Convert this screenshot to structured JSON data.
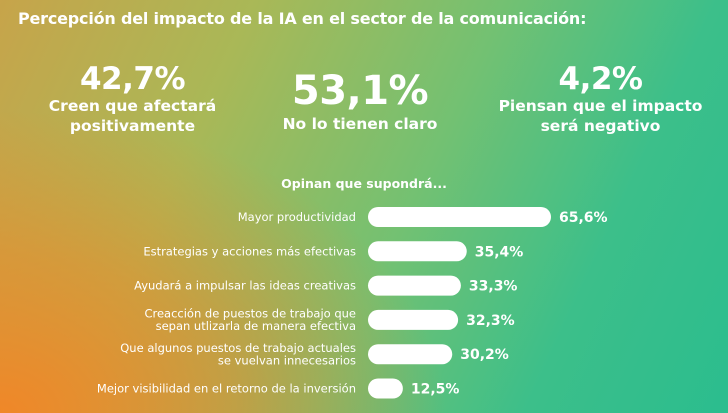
{
  "title": "Percepción del impacto de la IA en el sector de la comunicación:",
  "stats": [
    {
      "value": "42,7%",
      "caption_lines": [
        "Creen que afectará",
        "positivamente"
      ]
    },
    {
      "value": "53,1%",
      "caption_lines": [
        "No lo tienen claro"
      ]
    },
    {
      "value": "4,2%",
      "caption_lines": [
        "Piensan que el impacto",
        "será negativo"
      ]
    }
  ],
  "chart_data": {
    "type": "bar",
    "orientation": "horizontal",
    "title": "Opinan que supondrá...",
    "categories": [
      [
        "Mayor productividad"
      ],
      [
        "Estrategias y acciones más efectivas"
      ],
      [
        "Ayudará a impulsar las ideas creativas"
      ],
      [
        "Creacción de puestos de trabajo que",
        "sepan utlizarla de manera efectiva"
      ],
      [
        "Que algunos puestos de trabajo actuales",
        "se vuelvan innecesarios"
      ],
      [
        "Mejor visibilidad en el retorno de la inversión"
      ]
    ],
    "values": [
      65.6,
      35.4,
      33.3,
      32.3,
      30.2,
      12.5
    ],
    "value_labels": [
      "65,6%",
      "35,4%",
      "33,3%",
      "32,3%",
      "30,2%",
      "12,5%"
    ],
    "unit": "%",
    "bar_color": "#ffffff",
    "grid": false,
    "legend": "none"
  }
}
